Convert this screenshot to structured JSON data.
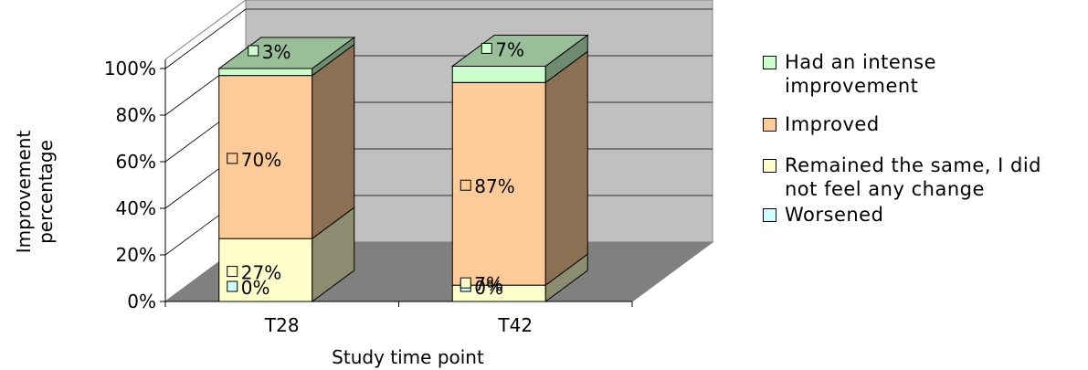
{
  "chart_data": {
    "type": "bar",
    "stacked": true,
    "three_d": true,
    "xlabel": "Study time point",
    "ylabel": "Improvement percentage",
    "ylim": [
      0,
      100
    ],
    "yticks": [
      "0%",
      "20%",
      "40%",
      "60%",
      "80%",
      "100%"
    ],
    "categories": [
      "T28",
      "T42"
    ],
    "series": [
      {
        "name": "Worsened",
        "values": [
          0,
          0
        ],
        "labels": [
          "0%",
          "0%"
        ],
        "color": "#ccffff"
      },
      {
        "name": "Remained the same, I did not  feel any change",
        "values": [
          27,
          7
        ],
        "labels": [
          "27%",
          "7%"
        ],
        "color": "#ffffcc"
      },
      {
        "name": "Improved",
        "values": [
          70,
          87
        ],
        "labels": [
          "70%",
          "87%"
        ],
        "color": "#ffcc99"
      },
      {
        "name": "Had an intense improvement",
        "values": [
          3,
          7
        ],
        "labels": [
          "3%",
          "7%"
        ],
        "color": "#ccffcc"
      }
    ],
    "grid": true,
    "legend_position": "right"
  },
  "legend": {
    "items": [
      {
        "lines": [
          "Had an intense",
          "improvement"
        ],
        "color": "#ccffcc"
      },
      {
        "lines": [
          "Improved"
        ],
        "color": "#ffcc99"
      },
      {
        "lines": [
          "Remained the same, I did",
          "not  feel any change"
        ],
        "color": "#ffffcc"
      },
      {
        "lines": [
          "Worsened"
        ],
        "color": "#ccffff"
      }
    ]
  },
  "colors": {
    "floor": "#808080",
    "wall": "#c0c0c0",
    "grid": "#000000",
    "edge": "#000000"
  }
}
